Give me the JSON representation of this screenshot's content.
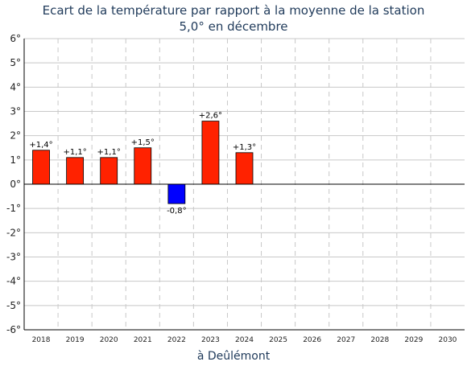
{
  "chart_data": {
    "type": "bar",
    "title": "Ecart de la température par rapport à la moyenne de la station",
    "subtitle": "5,0° en décembre",
    "xlabel": "à Deûlémont",
    "ylabel": "",
    "ylim": [
      -6,
      6
    ],
    "yticks": [
      "-6°",
      "-5°",
      "-4°",
      "-3°",
      "-2°",
      "-1°",
      "0°",
      "1°",
      "2°",
      "3°",
      "4°",
      "5°",
      "6°"
    ],
    "categories": [
      "2018",
      "2019",
      "2020",
      "2021",
      "2022",
      "2023",
      "2024",
      "2025",
      "2026",
      "2027",
      "2028",
      "2029",
      "2030"
    ],
    "values": [
      1.4,
      1.1,
      1.1,
      1.5,
      -0.8,
      2.6,
      1.3,
      null,
      null,
      null,
      null,
      null,
      null
    ],
    "data_labels": [
      "+1,4°",
      "+1,1°",
      "+1,1°",
      "+1,5°",
      "-0,8°",
      "+2,6°",
      "+1,3°",
      "",
      "",
      "",
      "",
      "",
      ""
    ],
    "colors": {
      "positive": "#ff2200",
      "negative": "#0000ff",
      "grid_h": "#c8c8c8",
      "grid_v": "#c8c8c8"
    },
    "grid": true,
    "legend": "none"
  }
}
